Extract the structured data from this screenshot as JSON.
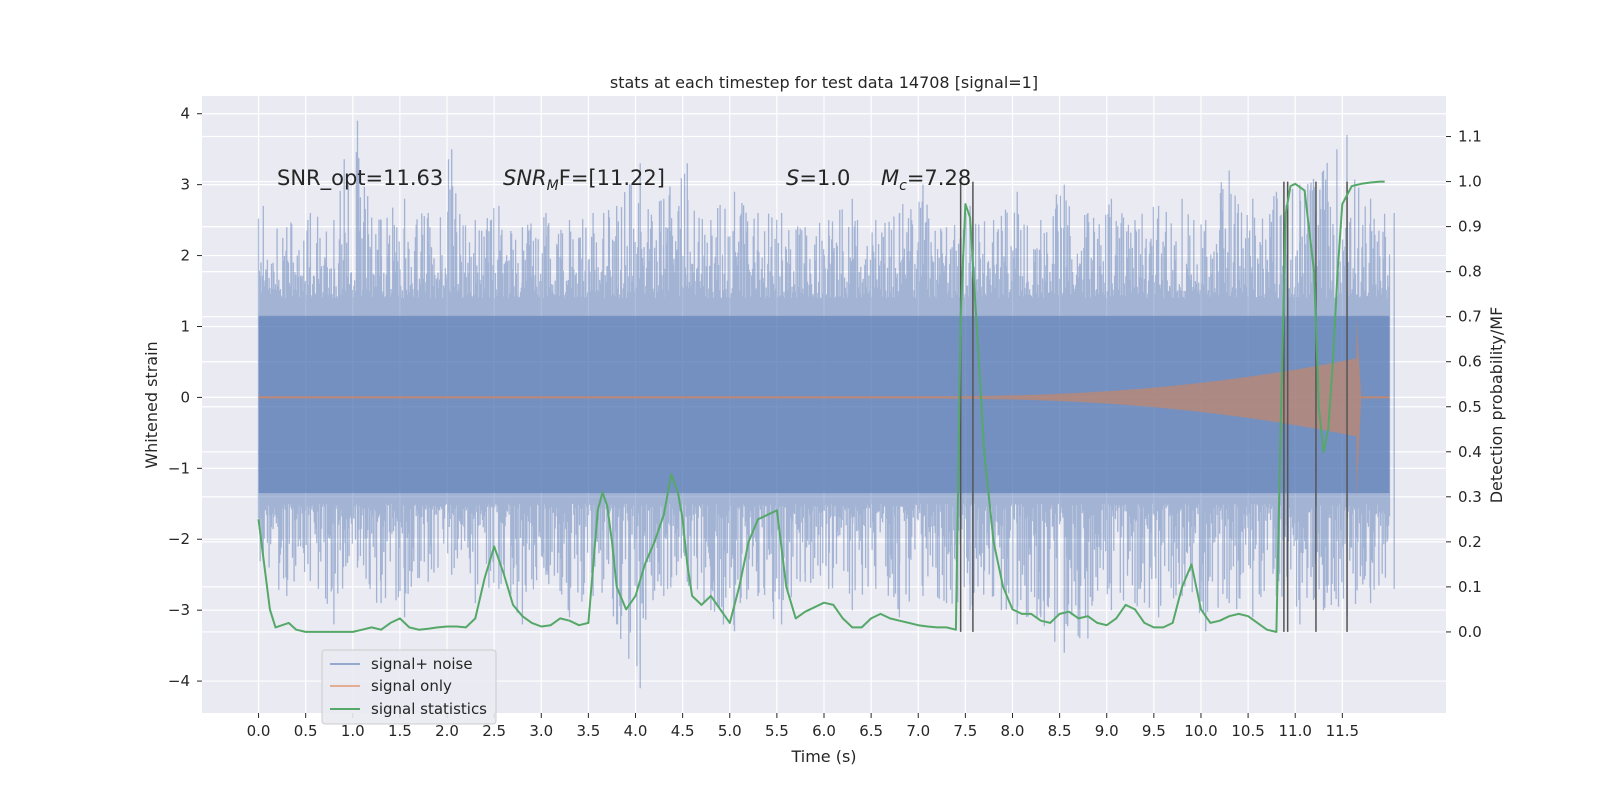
{
  "chart_data": {
    "type": "line",
    "title": "stats at each timestep for test data 14708 [signal=1]",
    "xlabel": "Time (s)",
    "ylabel": "Whitened strain",
    "ylabel_right": "Detection probability/MF",
    "xlim": [
      -0.6,
      12.6
    ],
    "ylim": [
      -4.45,
      4.25
    ],
    "ylim_right": [
      -0.18,
      1.19
    ],
    "x_ticks": [
      "0.0",
      "0.5",
      "1.0",
      "1.5",
      "2.0",
      "2.5",
      "3.0",
      "3.5",
      "4.0",
      "4.5",
      "5.0",
      "5.5",
      "6.0",
      "6.5",
      "7.0",
      "7.5",
      "8.0",
      "8.5",
      "9.0",
      "9.5",
      "10.0",
      "10.5",
      "11.0",
      "11.5"
    ],
    "y_ticks": [
      "4",
      "3",
      "2",
      "1",
      "0",
      "−1",
      "−2",
      "−3",
      "−4"
    ],
    "y_ticks_right": [
      "1.1",
      "1.0",
      "0.9",
      "0.8",
      "0.7",
      "0.6",
      "0.5",
      "0.4",
      "0.3",
      "0.2",
      "0.1",
      "0.0"
    ],
    "annotations": {
      "snr_opt": "SNR_opt=11.63",
      "snr_mf_base": "SNR",
      "snr_mf_sub": "M",
      "snr_mf_tail": "F=[11.22]",
      "s_label": "S",
      "s_value": "=1.0",
      "mc_base": "M",
      "mc_sub": "c",
      "mc_value": "=7.28"
    },
    "legend": {
      "position": "lower-left",
      "entries": [
        "signal+ noise",
        "signal only",
        "signal statistics"
      ]
    },
    "colors": {
      "noise": "#4c72b0",
      "signal": "#dd8452",
      "stats": "#55a868",
      "vlines": "#555555",
      "background": "#eaeaf2",
      "grid": "#ffffff"
    },
    "noise_time_range": [
      0.0,
      12.0
    ],
    "noise_envelope": {
      "time": [
        0.0,
        0.25,
        0.5,
        0.75,
        1.0,
        1.25,
        1.5,
        1.75,
        2.0,
        2.25,
        2.5,
        2.75,
        3.0,
        3.25,
        3.5,
        3.75,
        4.0,
        4.25,
        4.5,
        4.75,
        5.0,
        5.25,
        5.5,
        5.75,
        6.0,
        6.25,
        6.5,
        6.75,
        7.0,
        7.25,
        7.5,
        7.75,
        8.0,
        8.25,
        8.5,
        8.75,
        9.0,
        9.25,
        9.5,
        9.75,
        10.0,
        10.25,
        10.5,
        10.75,
        11.0,
        11.25,
        11.5,
        11.75,
        12.0
      ],
      "upper": [
        2.7,
        2.4,
        2.6,
        2.5,
        3.9,
        2.5,
        2.8,
        2.6,
        3.5,
        2.5,
        2.7,
        2.4,
        2.6,
        2.5,
        2.6,
        2.7,
        3.3,
        2.8,
        3.3,
        2.5,
        2.9,
        2.6,
        2.6,
        2.4,
        2.5,
        2.8,
        2.5,
        2.6,
        3.0,
        2.4,
        2.7,
        2.5,
        2.9,
        2.5,
        3.0,
        2.6,
        2.8,
        2.5,
        2.7,
        2.8,
        2.5,
        3.2,
        2.8,
        2.9,
        3.0,
        3.2,
        3.7,
        2.8,
        2.6
      ],
      "lower": [
        -2.3,
        -2.8,
        -2.5,
        -3.2,
        -2.4,
        -2.9,
        -3.1,
        -2.6,
        -2.5,
        -2.9,
        -2.7,
        -3.2,
        -2.5,
        -3.1,
        -2.8,
        -3.2,
        -4.1,
        -2.8,
        -2.6,
        -3.0,
        -3.3,
        -2.8,
        -3.2,
        -2.6,
        -2.7,
        -3.0,
        -2.7,
        -3.1,
        -2.8,
        -2.9,
        -3.0,
        -2.8,
        -3.2,
        -3.1,
        -3.6,
        -3.4,
        -3.0,
        -2.9,
        -3.1,
        -2.8,
        -3.3,
        -2.9,
        -3.1,
        -2.8,
        -3.2,
        -3.0,
        -3.1,
        -2.9,
        -2.7
      ]
    },
    "signal_only": {
      "t_start": 7.3,
      "t_end": 11.65,
      "start_amp": 0.02,
      "end_amp": 0.55,
      "peak_time": 11.65,
      "peak_upper": 1.15,
      "peak_lower": -1.45,
      "x_end": 12.0
    },
    "signal_statistics": {
      "x": [
        0.0,
        0.06,
        0.12,
        0.18,
        0.25,
        0.32,
        0.4,
        0.5,
        0.6,
        0.7,
        0.8,
        0.9,
        1.0,
        1.1,
        1.2,
        1.3,
        1.4,
        1.5,
        1.6,
        1.7,
        1.8,
        1.9,
        2.0,
        2.1,
        2.2,
        2.3,
        2.4,
        2.5,
        2.6,
        2.7,
        2.8,
        2.9,
        3.0,
        3.1,
        3.2,
        3.3,
        3.4,
        3.5,
        3.6,
        3.65,
        3.7,
        3.75,
        3.8,
        3.9,
        4.0,
        4.1,
        4.2,
        4.3,
        4.38,
        4.45,
        4.5,
        4.55,
        4.6,
        4.7,
        4.8,
        4.9,
        5.0,
        5.1,
        5.2,
        5.3,
        5.4,
        5.5,
        5.6,
        5.7,
        5.8,
        5.9,
        6.0,
        6.1,
        6.2,
        6.3,
        6.4,
        6.5,
        6.6,
        6.7,
        6.8,
        6.9,
        7.0,
        7.1,
        7.2,
        7.3,
        7.4,
        7.45,
        7.5,
        7.55,
        7.6,
        7.7,
        7.8,
        7.9,
        8.0,
        8.1,
        8.2,
        8.3,
        8.4,
        8.5,
        8.6,
        8.7,
        8.8,
        8.9,
        9.0,
        9.1,
        9.2,
        9.3,
        9.4,
        9.5,
        9.6,
        9.7,
        9.8,
        9.9,
        10.0,
        10.1,
        10.2,
        10.3,
        10.4,
        10.5,
        10.6,
        10.7,
        10.8,
        10.85,
        10.9,
        10.95,
        11.0,
        11.1,
        11.2,
        11.25,
        11.3,
        11.35,
        11.4,
        11.45,
        11.5,
        11.55,
        11.6,
        11.7,
        11.8,
        11.9,
        11.95
      ],
      "y": [
        0.25,
        0.15,
        0.05,
        0.01,
        0.015,
        0.02,
        0.005,
        0.0,
        0.0,
        0.0,
        0.0,
        0.0,
        0.0,
        0.005,
        0.01,
        0.005,
        0.02,
        0.03,
        0.01,
        0.005,
        0.007,
        0.01,
        0.012,
        0.012,
        0.01,
        0.03,
        0.12,
        0.19,
        0.13,
        0.06,
        0.035,
        0.02,
        0.012,
        0.015,
        0.03,
        0.025,
        0.015,
        0.02,
        0.27,
        0.31,
        0.28,
        0.2,
        0.1,
        0.05,
        0.08,
        0.15,
        0.2,
        0.26,
        0.35,
        0.31,
        0.25,
        0.15,
        0.08,
        0.06,
        0.08,
        0.05,
        0.02,
        0.1,
        0.2,
        0.25,
        0.26,
        0.27,
        0.1,
        0.03,
        0.045,
        0.055,
        0.065,
        0.06,
        0.03,
        0.01,
        0.01,
        0.03,
        0.04,
        0.03,
        0.025,
        0.02,
        0.015,
        0.012,
        0.01,
        0.01,
        0.005,
        0.7,
        0.95,
        0.92,
        0.75,
        0.4,
        0.2,
        0.1,
        0.05,
        0.04,
        0.04,
        0.025,
        0.02,
        0.04,
        0.045,
        0.03,
        0.035,
        0.02,
        0.015,
        0.03,
        0.06,
        0.05,
        0.02,
        0.01,
        0.01,
        0.02,
        0.1,
        0.15,
        0.05,
        0.02,
        0.025,
        0.035,
        0.04,
        0.035,
        0.02,
        0.005,
        0.0,
        0.5,
        0.93,
        0.99,
        0.995,
        0.98,
        0.8,
        0.5,
        0.4,
        0.45,
        0.6,
        0.8,
        0.95,
        0.97,
        0.99,
        0.995,
        0.998,
        1.0,
        1.0
      ],
      "x_end": 11.95
    },
    "vertical_lines": [
      7.45,
      7.58,
      10.88,
      10.92,
      11.22,
      11.55
    ]
  }
}
